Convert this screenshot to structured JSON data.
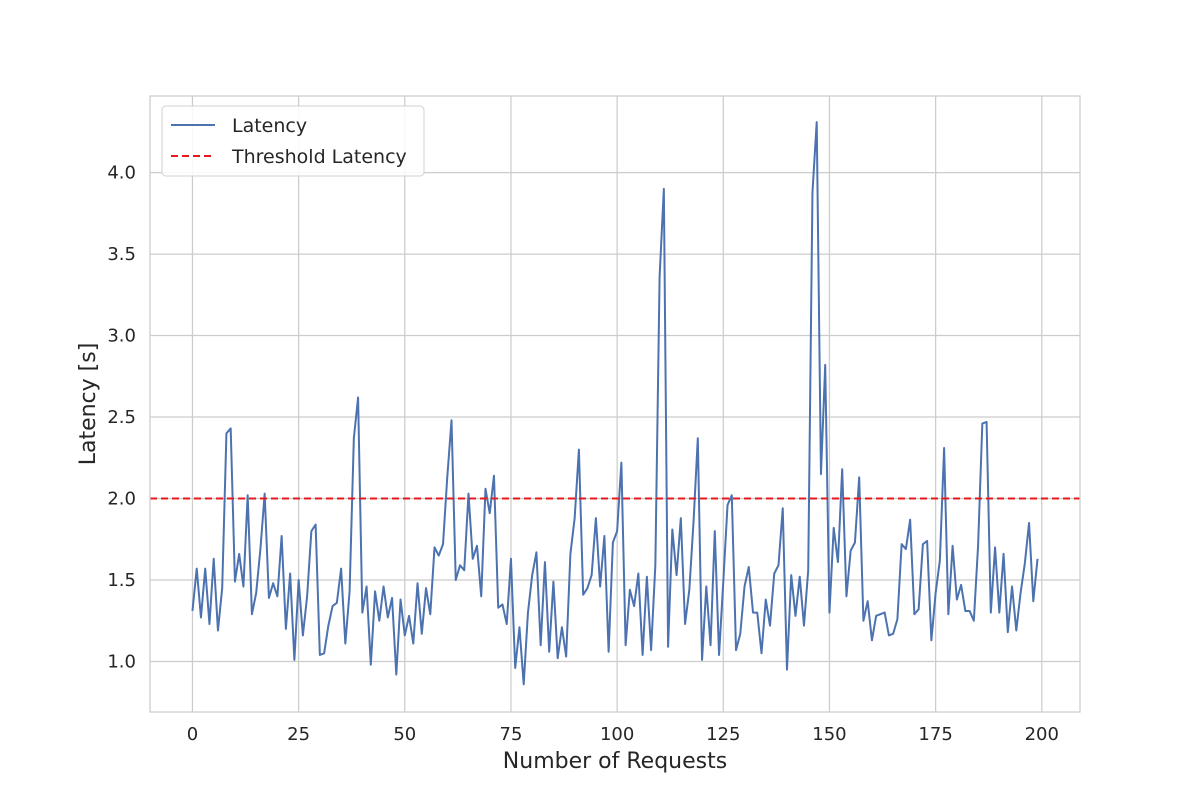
{
  "chart_data": {
    "type": "line",
    "title": "",
    "xlabel": "Number of Requests",
    "ylabel": "Latency [s]",
    "xlim": [
      -10,
      209
    ],
    "ylim": [
      0.69,
      4.47
    ],
    "xticks": [
      0,
      25,
      50,
      75,
      100,
      125,
      150,
      175,
      200
    ],
    "yticks": [
      1.0,
      1.5,
      2.0,
      2.5,
      3.0,
      3.5,
      4.0
    ],
    "xtick_labels": [
      "0",
      "25",
      "50",
      "75",
      "100",
      "125",
      "150",
      "175",
      "200"
    ],
    "ytick_labels": [
      "1.0",
      "1.5",
      "2.0",
      "2.5",
      "3.0",
      "3.5",
      "4.0"
    ],
    "grid": true,
    "legend_position": "upper-left",
    "series": [
      {
        "name": "Latency",
        "color": "#4c72b0",
        "style": "solid",
        "x_start": 0,
        "x_step": 1,
        "values": [
          1.31,
          1.57,
          1.27,
          1.57,
          1.23,
          1.63,
          1.19,
          1.45,
          2.4,
          2.43,
          1.49,
          1.66,
          1.46,
          2.02,
          1.29,
          1.42,
          1.69,
          2.03,
          1.39,
          1.48,
          1.4,
          1.77,
          1.2,
          1.54,
          1.01,
          1.5,
          1.16,
          1.4,
          1.8,
          1.84,
          1.04,
          1.05,
          1.22,
          1.34,
          1.36,
          1.57,
          1.11,
          1.43,
          2.37,
          2.62,
          1.3,
          1.46,
          0.98,
          1.43,
          1.25,
          1.46,
          1.27,
          1.39,
          0.92,
          1.38,
          1.16,
          1.28,
          1.11,
          1.48,
          1.17,
          1.45,
          1.29,
          1.7,
          1.65,
          1.72,
          2.13,
          2.48,
          1.5,
          1.59,
          1.56,
          2.03,
          1.63,
          1.71,
          1.4,
          2.06,
          1.91,
          2.14,
          1.33,
          1.35,
          1.23,
          1.63,
          0.96,
          1.21,
          0.86,
          1.3,
          1.53,
          1.67,
          1.1,
          1.61,
          1.06,
          1.49,
          1.02,
          1.21,
          1.03,
          1.66,
          1.88,
          2.3,
          1.41,
          1.45,
          1.53,
          1.88,
          1.46,
          1.77,
          1.06,
          1.73,
          1.8,
          2.22,
          1.1,
          1.44,
          1.34,
          1.54,
          1.04,
          1.52,
          1.07,
          1.59,
          3.36,
          3.9,
          1.09,
          1.81,
          1.53,
          1.88,
          1.23,
          1.44,
          1.86,
          2.37,
          1.01,
          1.46,
          1.1,
          1.8,
          1.04,
          1.49,
          1.96,
          2.02,
          1.07,
          1.17,
          1.46,
          1.58,
          1.3,
          1.3,
          1.05,
          1.38,
          1.22,
          1.54,
          1.59,
          1.94,
          0.95,
          1.53,
          1.28,
          1.52,
          1.22,
          1.56,
          3.88,
          4.31,
          2.15,
          2.82,
          1.3,
          1.82,
          1.61,
          2.18,
          1.4,
          1.68,
          1.73,
          2.13,
          1.25,
          1.37,
          1.13,
          1.28,
          1.29,
          1.3,
          1.16,
          1.17,
          1.26,
          1.72,
          1.69,
          1.87,
          1.29,
          1.32,
          1.72,
          1.74,
          1.13,
          1.42,
          1.62,
          2.31,
          1.29,
          1.71,
          1.38,
          1.47,
          1.31,
          1.31,
          1.25,
          1.71,
          2.46,
          2.47,
          1.3,
          1.7,
          1.3,
          1.66,
          1.18,
          1.46,
          1.19,
          1.42,
          1.6,
          1.85,
          1.37,
          1.63
        ]
      },
      {
        "name": "Threshold Latency",
        "color": "#e41a1c",
        "style": "dashed",
        "constant": 2.0
      }
    ]
  }
}
